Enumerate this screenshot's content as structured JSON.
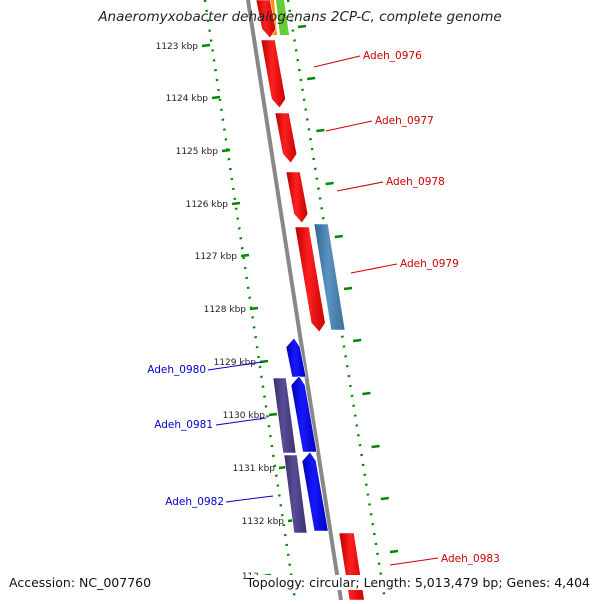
{
  "title": "Anaeromyxobacter dehalogenans 2CP-C, complete genome",
  "accession": "Accession: NC_007760",
  "summary": "Topology: circular; Length: 5,013,479 bp; Genes: 4,404",
  "ticks": [
    "1123 kbp",
    "1124 kbp",
    "1125 kbp",
    "1126 kbp",
    "1127 kbp",
    "1128 kbp",
    "1129 kbp",
    "1130 kbp",
    "1131 kbp",
    "1132 kbp",
    "113"
  ],
  "genes": [
    {
      "label": "Adeh_0976",
      "strand": "forward",
      "color": "#ff0000"
    },
    {
      "label": "Adeh_0977",
      "strand": "forward",
      "color": "#ff0000"
    },
    {
      "label": "Adeh_0978",
      "strand": "forward",
      "color": "#ff0000"
    },
    {
      "label": "Adeh_0979",
      "strand": "forward",
      "color": "#ff0000"
    },
    {
      "label": "Adeh_0980",
      "strand": "reverse",
      "color": "#0000ff"
    },
    {
      "label": "Adeh_0981",
      "strand": "reverse",
      "color": "#0000ff"
    },
    {
      "label": "Adeh_0982",
      "strand": "reverse",
      "color": "#0000ff"
    },
    {
      "label": "Adeh_0983",
      "strand": "forward",
      "color": "#ff0000"
    }
  ],
  "colors": {
    "forward_cds": "#ff0000",
    "reverse_cds": "#0000ff",
    "forward_feature": "#4682b4",
    "reverse_feature": "#483d8b",
    "backbone": "#888888",
    "dotted_track": "#008000",
    "label_forward": "#cc0000",
    "label_reverse": "#0000cc"
  }
}
